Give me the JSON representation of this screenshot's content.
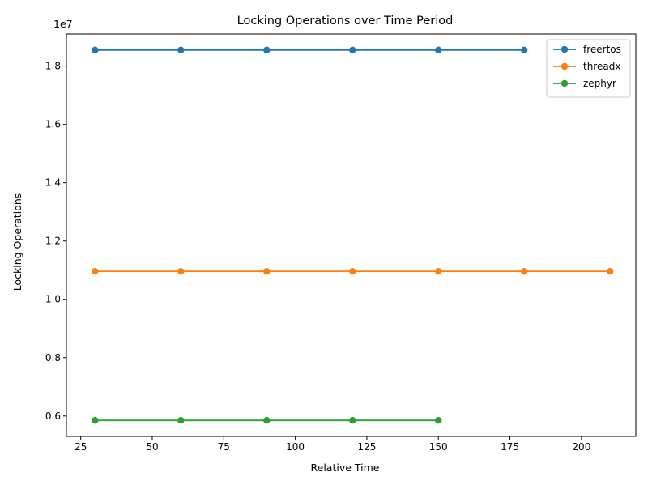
{
  "chart_data": {
    "type": "line",
    "title": "Locking Operations over Time Period",
    "xlabel": "Relative Time",
    "ylabel": "Locking Operations",
    "offset_label": "1e7",
    "xlim": [
      20,
      219
    ],
    "ylim": [
      5300000,
      19100000
    ],
    "x_ticks": [
      25,
      50,
      75,
      100,
      125,
      150,
      175,
      200
    ],
    "y_ticks": [
      6000000,
      8000000,
      10000000,
      12000000,
      14000000,
      16000000,
      18000000
    ],
    "y_tick_labels": [
      "0.6",
      "0.8",
      "1.0",
      "1.2",
      "1.4",
      "1.6",
      "1.8"
    ],
    "grid": false,
    "legend_position": "top-right",
    "series": [
      {
        "name": "freertos",
        "color": "#1f77b4",
        "x": [
          30,
          60,
          90,
          120,
          150,
          180
        ],
        "y": [
          18550000,
          18550000,
          18550000,
          18550000,
          18550000,
          18550000
        ]
      },
      {
        "name": "threadx",
        "color": "#ff7f0e",
        "x": [
          30,
          60,
          90,
          120,
          150,
          180,
          210
        ],
        "y": [
          10960000,
          10960000,
          10960000,
          10960000,
          10960000,
          10960000,
          10960000
        ]
      },
      {
        "name": "zephyr",
        "color": "#2ca02c",
        "x": [
          30,
          60,
          90,
          120,
          150
        ],
        "y": [
          5850000,
          5850000,
          5850000,
          5850000,
          5850000
        ]
      }
    ]
  }
}
